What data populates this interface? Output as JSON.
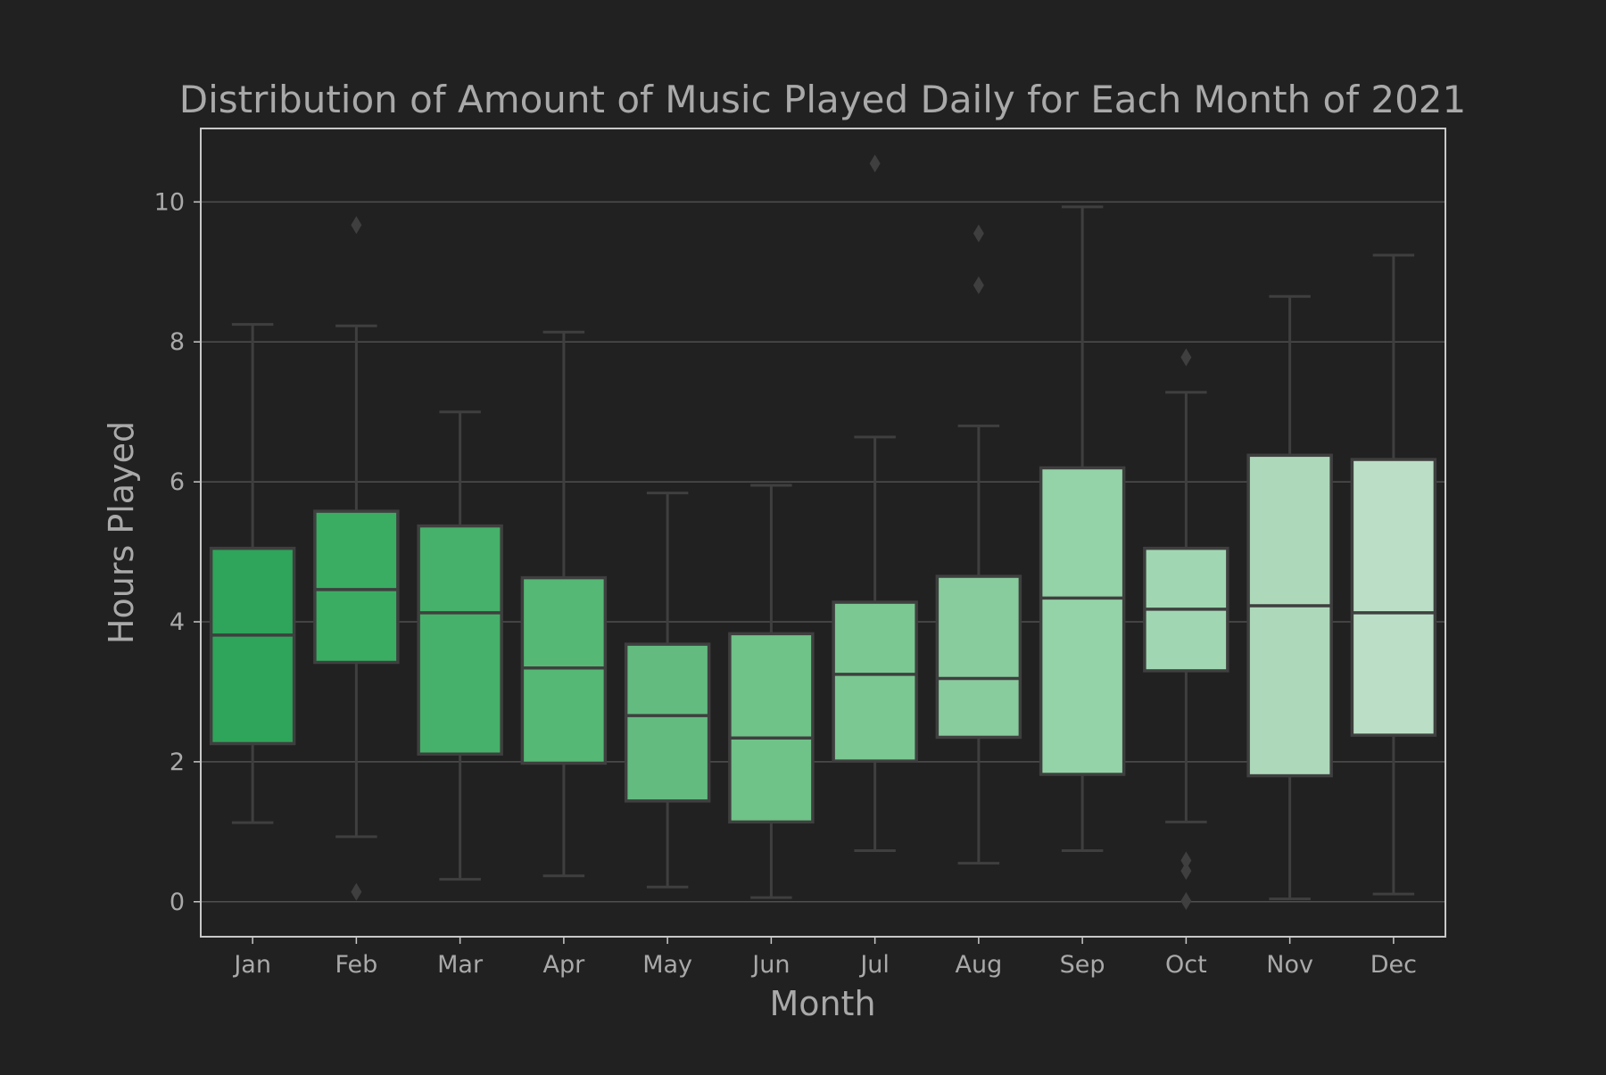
{
  "chart_data": {
    "type": "box",
    "title": "Distribution of Amount of Music Played Daily for Each Month of 2021",
    "xlabel": "Month",
    "ylabel": "Hours Played",
    "ylim": [
      -0.5,
      11.05
    ],
    "yticks": [
      0,
      2,
      4,
      6,
      8,
      10
    ],
    "grid": "horizontal",
    "categories": [
      "Jan",
      "Feb",
      "Mar",
      "Apr",
      "May",
      "Jun",
      "Jul",
      "Aug",
      "Sep",
      "Oct",
      "Nov",
      "Dec"
    ],
    "boxes": [
      {
        "category": "Jan",
        "whisker_low": 1.13,
        "q1": 2.26,
        "median": 3.81,
        "q3": 5.05,
        "whisker_high": 8.25,
        "outliers": []
      },
      {
        "category": "Feb",
        "whisker_low": 0.93,
        "q1": 3.42,
        "median": 4.46,
        "q3": 5.58,
        "whisker_high": 8.23,
        "outliers": [
          0.14,
          9.67
        ]
      },
      {
        "category": "Mar",
        "whisker_low": 0.32,
        "q1": 2.11,
        "median": 4.13,
        "q3": 5.37,
        "whisker_high": 7.0,
        "outliers": []
      },
      {
        "category": "Apr",
        "whisker_low": 0.37,
        "q1": 1.98,
        "median": 3.34,
        "q3": 4.63,
        "whisker_high": 8.14,
        "outliers": []
      },
      {
        "category": "May",
        "whisker_low": 0.21,
        "q1": 1.44,
        "median": 2.66,
        "q3": 3.68,
        "whisker_high": 5.84,
        "outliers": []
      },
      {
        "category": "Jun",
        "whisker_low": 0.06,
        "q1": 1.14,
        "median": 2.34,
        "q3": 3.83,
        "whisker_high": 5.95,
        "outliers": []
      },
      {
        "category": "Jul",
        "whisker_low": 0.73,
        "q1": 2.01,
        "median": 3.25,
        "q3": 4.28,
        "whisker_high": 6.64,
        "outliers": [
          10.55
        ]
      },
      {
        "category": "Aug",
        "whisker_low": 0.55,
        "q1": 2.35,
        "median": 3.19,
        "q3": 4.65,
        "whisker_high": 6.8,
        "outliers": [
          8.81,
          9.55
        ]
      },
      {
        "category": "Sep",
        "whisker_low": 0.73,
        "q1": 1.82,
        "median": 4.34,
        "q3": 6.2,
        "whisker_high": 9.93,
        "outliers": []
      },
      {
        "category": "Oct",
        "whisker_low": 1.14,
        "q1": 3.3,
        "median": 4.18,
        "q3": 5.05,
        "whisker_high": 7.28,
        "outliers": [
          0.01,
          0.44,
          0.59,
          7.78
        ]
      },
      {
        "category": "Nov",
        "whisker_low": 0.04,
        "q1": 1.8,
        "median": 4.23,
        "q3": 6.38,
        "whisker_high": 8.65,
        "outliers": []
      },
      {
        "category": "Dec",
        "whisker_low": 0.11,
        "q1": 2.38,
        "median": 4.13,
        "q3": 6.32,
        "whisker_high": 9.24,
        "outliers": []
      }
    ],
    "colors": {
      "background": "#212121",
      "text": "#a9a9a9",
      "grid": "#4f4f4f",
      "axes_frame": "#c8c8c8",
      "box_edge": "#3f3f3f",
      "box_fills": [
        "#2ea55a",
        "#3aad63",
        "#46b16a",
        "#55b874",
        "#63bb80",
        "#6fc288",
        "#7bc892",
        "#88cc9d",
        "#94d2a8",
        "#a0d7b2",
        "#add9ba",
        "#bbdfc6"
      ]
    }
  }
}
